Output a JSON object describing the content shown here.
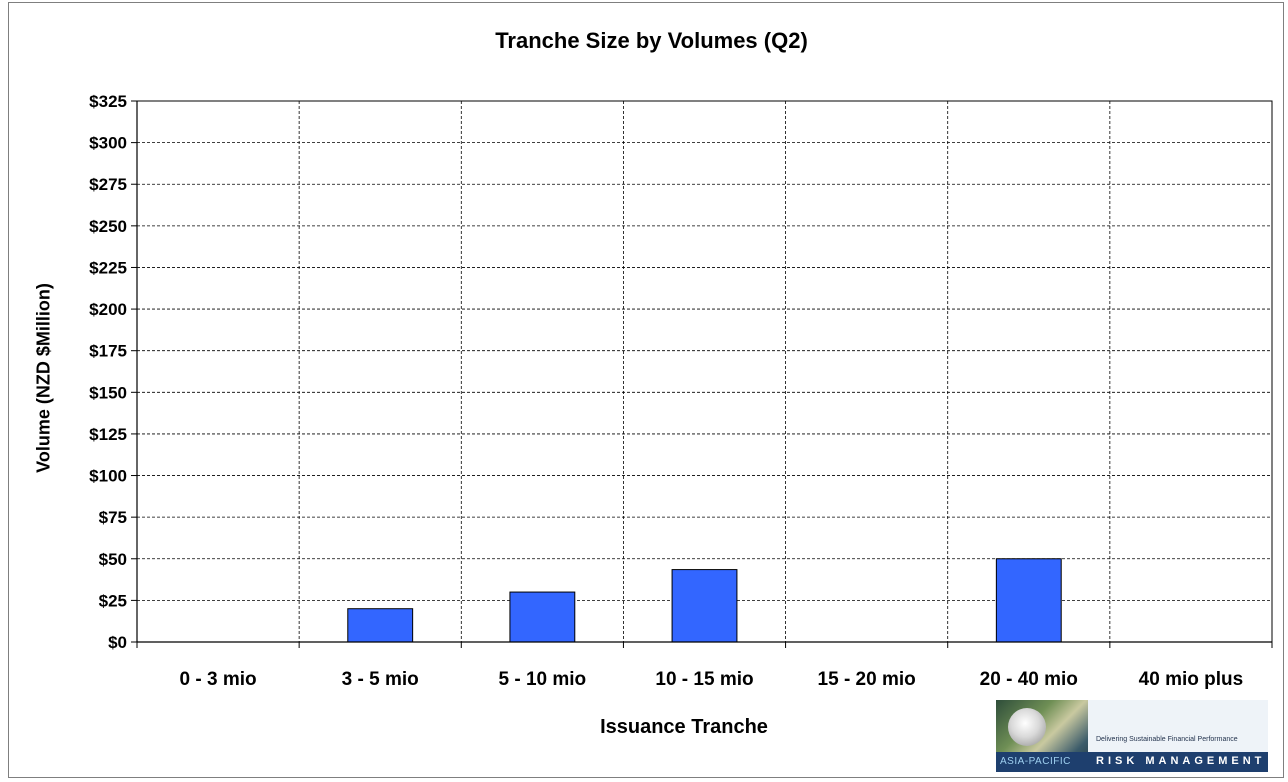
{
  "chart_data": {
    "type": "bar",
    "title": "Tranche Size by Volumes (Q2)",
    "xlabel": "Issuance Tranche",
    "ylabel": "Volume (NZD $Million)",
    "categories": [
      "0 - 3 mio",
      "3 - 5 mio",
      "5 - 10 mio",
      "10 - 15 mio",
      "15 - 20 mio",
      "20 - 40 mio",
      "40 mio plus"
    ],
    "values": [
      0,
      20,
      30,
      43.5,
      0,
      50,
      0
    ],
    "ylim": [
      0,
      325
    ],
    "yticks": [
      0,
      25,
      50,
      75,
      100,
      125,
      150,
      175,
      200,
      225,
      250,
      275,
      300,
      325
    ],
    "ytick_labels": [
      "$0",
      "$25",
      "$50",
      "$75",
      "$100",
      "$125",
      "$150",
      "$175",
      "$200",
      "$225",
      "$250",
      "$275",
      "$300",
      "$325"
    ],
    "grid": true,
    "bar_color": "#3366ff",
    "legend": "none"
  },
  "logo": {
    "tagline": "Delivering Sustainable Financial Performance",
    "region": "ASIA-PACIFIC",
    "name": "RISK MANAGEMENT"
  }
}
